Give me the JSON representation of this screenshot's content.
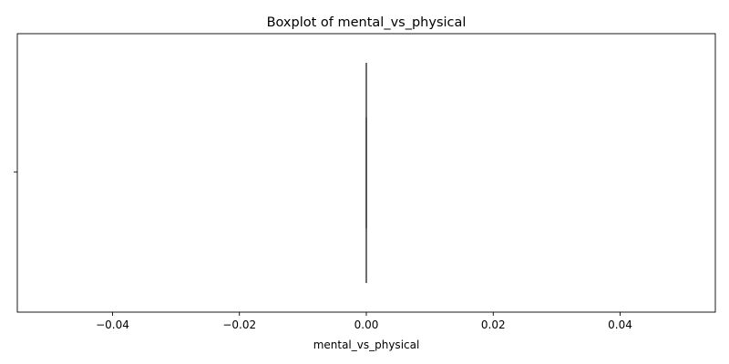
{
  "chart_data": {
    "type": "boxplot",
    "title": "Boxplot of mental_vs_physical",
    "xlabel": "mental_vs_physical",
    "ylabel": "",
    "xlim": [
      -0.055,
      0.055
    ],
    "x_ticks": [
      -0.04,
      -0.02,
      0.0,
      0.02,
      0.04
    ],
    "x_tick_labels": [
      "−0.04",
      "−0.02",
      "0.00",
      "0.02",
      "0.04"
    ],
    "orientation": "horizontal",
    "grid": false,
    "box": {
      "min": 0.0,
      "q1": 0.0,
      "median": 0.0,
      "q3": 0.0,
      "max": 0.0
    },
    "colors": {
      "box_line": "#3f3f3f",
      "axis": "#000000"
    }
  }
}
